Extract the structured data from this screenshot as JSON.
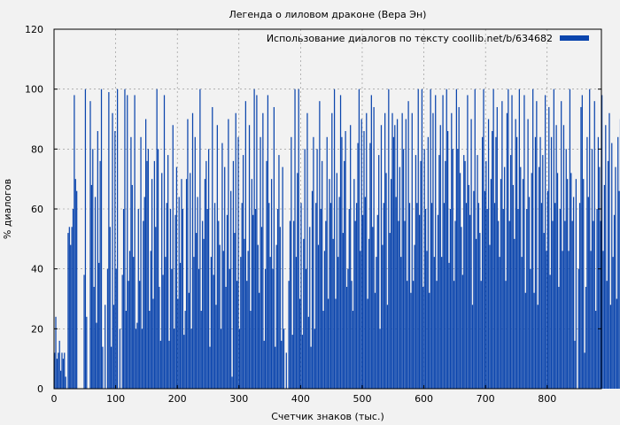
{
  "chart_data": {
    "type": "bar",
    "title": "Легенда о лиловом драконе (Вера Эн)",
    "xlabel": "Счетчик знаков (тыс.)",
    "ylabel": "% диалогов",
    "xlim": [
      0,
      888
    ],
    "ylim": [
      0,
      120
    ],
    "x_ticks": [
      0,
      100,
      200,
      300,
      400,
      500,
      600,
      700,
      800
    ],
    "y_ticks": [
      0,
      20,
      40,
      60,
      80,
      100,
      120
    ],
    "grid": true,
    "legend_position": "top-right",
    "bin_width_k": 2,
    "series": [
      {
        "name": "Использование диалогов по тексту coollib.net/b/634682",
        "color": "#0b45ad",
        "values": [
          12,
          24,
          10,
          12,
          16,
          6,
          12,
          10,
          12,
          4,
          0,
          52,
          54,
          48,
          54,
          60,
          98,
          70,
          66,
          0,
          0,
          0,
          0,
          0,
          38,
          100,
          24,
          0,
          0,
          96,
          68,
          80,
          34,
          64,
          22,
          86,
          42,
          76,
          100,
          14,
          0,
          28,
          0,
          40,
          99,
          54,
          14,
          92,
          28,
          86,
          40,
          100,
          0,
          20,
          0,
          38,
          60,
          100,
          26,
          98,
          36,
          46,
          84,
          68,
          44,
          98,
          20,
          22,
          60,
          36,
          84,
          20,
          56,
          64,
          90,
          76,
          80,
          26,
          46,
          70,
          30,
          76,
          54,
          100,
          80,
          34,
          16,
          72,
          38,
          98,
          44,
          62,
          78,
          16,
          60,
          40,
          88,
          20,
          58,
          74,
          30,
          64,
          42,
          70,
          60,
          18,
          26,
          70,
          90,
          32,
          72,
          20,
          92,
          44,
          84,
          52,
          64,
          40,
          100,
          26,
          56,
          50,
          70,
          76,
          60,
          80,
          14,
          44,
          94,
          38,
          62,
          28,
          88,
          56,
          48,
          20,
          82,
          46,
          74,
          34,
          58,
          90,
          40,
          66,
          4,
          76,
          52,
          92,
          36,
          84,
          20,
          44,
          62,
          78,
          50,
          96,
          36,
          46,
          88,
          26,
          70,
          58,
          100,
          60,
          98,
          48,
          32,
          84,
          54,
          92,
          16,
          40,
          76,
          98,
          62,
          44,
          70,
          40,
          94,
          14,
          48,
          60,
          78,
          54,
          16,
          74,
          20,
          0,
          12,
          0,
          36,
          56,
          84,
          18,
          56,
          100,
          44,
          72,
          100,
          30,
          62,
          18,
          50,
          80,
          40,
          92,
          24,
          54,
          14,
          66,
          84,
          20,
          62,
          80,
          48,
          96,
          60,
          76,
          26,
          46,
          56,
          84,
          30,
          70,
          62,
          92,
          50,
          100,
          30,
          72,
          44,
          64,
          98,
          84,
          52,
          76,
          86,
          34,
          40,
          60,
          88,
          36,
          26,
          70,
          56,
          62,
          82,
          100,
          46,
          90,
          58,
          86,
          64,
          92,
          30,
          50,
          82,
          98,
          54,
          94,
          32,
          44,
          58,
          78,
          20,
          88,
          48,
          62,
          92,
          72,
          28,
          100,
          52,
          70,
          92,
          84,
          88,
          64,
          90,
          56,
          74,
          44,
          92,
          80,
          56,
          90,
          36,
          96,
          62,
          32,
          92,
          36,
          48,
          78,
          62,
          100,
          58,
          76,
          100,
          34,
          80,
          60,
          46,
          84,
          32,
          100,
          62,
          92,
          44,
          98,
          36,
          58,
          78,
          88,
          44,
          98,
          62,
          76,
          100,
          86,
          42,
          60,
          92,
          80,
          36,
          56,
          100,
          80,
          94,
          72,
          54,
          38,
          78,
          76,
          62,
          98,
          68,
          58,
          90,
          28,
          66,
          100,
          50,
          78,
          62,
          52,
          36,
          84,
          100,
          66,
          76,
          60,
          90,
          48,
          70,
          86,
          100,
          62,
          84,
          94,
          56,
          44,
          70,
          96,
          60,
          74,
          36,
          92,
          100,
          56,
          78,
          98,
          68,
          50,
          90,
          84,
          60,
          100,
          74,
          44,
          70,
          98,
          32,
          60,
          90,
          64,
          40,
          72,
          100,
          32,
          84,
          96,
          28,
          74,
          84,
          62,
          78,
          52,
          98,
          46,
          66,
          94,
          38,
          84,
          56,
          100,
          62,
          88,
          72,
          34,
          60,
          96,
          46,
          88,
          56,
          80,
          70,
          46,
          100,
          72,
          56,
          64,
          16,
          70,
          0,
          40,
          62,
          94,
          98,
          70,
          12,
          34,
          84,
          64,
          100,
          46,
          80,
          56,
          96,
          26,
          60,
          84,
          74,
          56,
          98,
          46,
          68,
          88,
          36,
          76,
          92,
          28,
          82,
          44,
          58,
          74,
          30,
          84,
          66,
          90,
          40,
          78,
          88,
          22,
          58,
          94,
          34,
          76,
          68,
          40,
          18,
          0,
          40,
          82,
          100,
          28,
          70,
          90,
          24,
          60,
          100,
          32,
          78,
          52,
          86,
          34,
          72,
          96,
          24,
          58,
          88,
          20,
          66,
          98,
          52,
          76,
          40,
          82,
          28,
          92,
          60,
          12,
          74,
          98,
          48,
          84,
          32,
          64,
          22,
          56,
          96,
          70,
          40,
          90,
          60,
          100,
          76,
          36,
          86,
          54,
          98,
          68,
          30,
          86,
          44,
          68,
          100,
          50,
          78,
          28,
          90,
          62,
          40,
          72,
          96,
          28,
          52,
          84,
          60,
          76,
          46,
          66,
          88,
          30,
          48,
          22,
          98,
          40,
          28,
          78,
          44,
          0,
          0,
          50,
          72,
          82,
          26,
          58,
          88,
          40,
          60,
          30,
          76,
          52,
          16,
          40,
          86,
          68,
          56,
          48,
          66,
          28,
          84,
          36,
          50,
          16,
          0,
          6,
          58,
          84,
          12,
          0,
          6,
          28,
          0,
          52,
          36,
          62,
          92,
          44,
          86,
          70,
          38,
          90,
          54,
          72,
          92,
          60,
          32,
          86,
          48,
          94,
          70,
          40,
          66,
          22,
          80,
          54,
          92,
          30,
          44,
          90,
          58,
          82,
          36,
          84,
          60,
          100,
          40,
          68,
          98,
          34,
          80,
          58,
          86,
          66,
          40,
          60,
          100,
          62,
          72,
          84,
          42,
          96,
          54,
          78,
          30,
          86,
          62,
          94,
          46,
          90,
          56,
          80,
          88,
          38,
          92,
          50,
          76,
          32,
          86,
          96,
          48,
          74,
          98,
          28,
          62,
          84,
          46,
          90,
          58,
          100,
          36,
          78,
          98,
          30,
          42,
          86,
          58,
          24,
          66,
          86,
          38,
          92,
          44,
          74,
          100,
          26,
          58,
          84,
          40,
          28,
          74,
          92,
          52,
          94,
          36,
          78,
          88,
          56,
          74,
          100,
          30,
          64,
          86,
          48,
          40,
          90,
          60,
          82,
          36,
          100,
          68,
          94,
          46,
          80,
          22,
          60,
          88,
          38,
          78,
          54,
          86,
          40,
          64,
          78,
          56,
          72,
          28,
          86,
          60,
          74,
          16,
          66,
          90,
          44,
          84,
          58,
          76,
          98,
          36,
          52,
          72,
          86,
          44,
          100,
          62,
          70,
          84,
          38,
          80,
          56,
          92,
          0,
          12,
          0,
          0,
          24,
          0,
          0,
          0,
          0,
          18,
          60,
          20,
          24,
          36,
          18,
          44,
          10,
          74,
          32,
          20,
          76,
          24,
          0,
          78,
          18,
          0,
          38,
          62,
          80,
          28,
          74,
          64,
          36,
          48,
          88,
          38,
          20,
          46,
          96,
          62,
          40,
          100,
          56,
          98,
          70,
          32,
          52,
          66,
          100,
          44,
          62,
          80,
          58,
          38,
          64,
          68,
          98,
          48,
          56,
          74,
          36,
          62,
          80,
          40,
          64,
          70,
          96,
          30,
          82,
          58,
          66,
          54,
          70,
          100,
          40,
          60,
          44,
          70,
          60,
          84,
          72,
          66,
          62,
          58,
          78,
          82,
          64,
          96,
          70,
          60,
          94,
          78,
          64,
          88,
          100,
          80,
          60
        ]
      }
    ]
  }
}
